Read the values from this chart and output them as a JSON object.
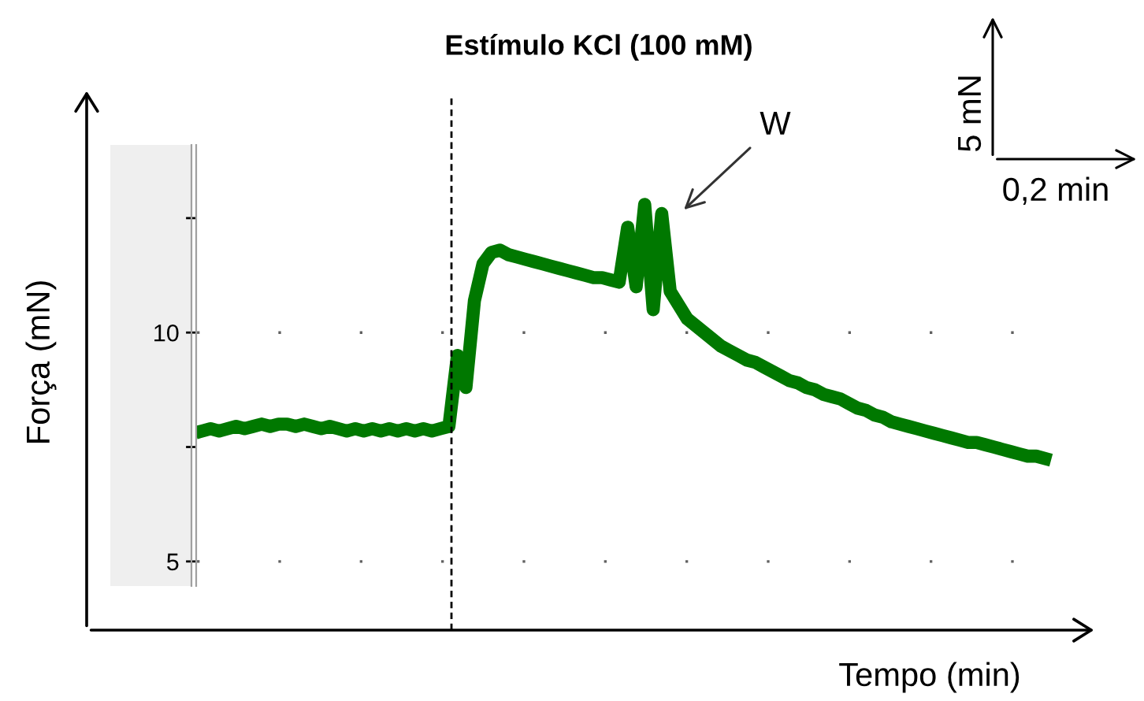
{
  "chart_data": {
    "type": "line",
    "title": "Estímulo KCl (100 mM)",
    "xlabel": "Tempo (min)",
    "ylabel": "Força (mN)",
    "categories": [
      null,
      null,
      null,
      null,
      null,
      null,
      null,
      null,
      null,
      null,
      null,
      null,
      null,
      null,
      null,
      null,
      null,
      null,
      null,
      null,
      null,
      null,
      null,
      null,
      null,
      null,
      null,
      null,
      null,
      null,
      null,
      null,
      null,
      null,
      null,
      null,
      null,
      null,
      null,
      null,
      null,
      null,
      null,
      null,
      null,
      null,
      null,
      null,
      null,
      null,
      null,
      null,
      null,
      null,
      null,
      null,
      null,
      null,
      null,
      null,
      null,
      null,
      null,
      null,
      null,
      null,
      null,
      null,
      null,
      null,
      null,
      null,
      null,
      null,
      null,
      null,
      null,
      null,
      null,
      null,
      null,
      null,
      null,
      null,
      null,
      null,
      null,
      null,
      null,
      null,
      null,
      null,
      null,
      null,
      null,
      null,
      null,
      null,
      null,
      null
    ],
    "series": [
      {
        "color": "#007800",
        "values": [
          7.85,
          7.9,
          7.85,
          7.9,
          7.95,
          7.9,
          7.95,
          8.0,
          7.95,
          8.0,
          8.0,
          7.95,
          8.0,
          7.95,
          7.9,
          7.95,
          7.9,
          7.85,
          7.9,
          7.85,
          7.9,
          7.85,
          7.9,
          7.85,
          7.9,
          7.85,
          7.9,
          7.85,
          7.9,
          7.95,
          9.5,
          8.8,
          10.7,
          11.5,
          11.75,
          11.8,
          11.7,
          11.65,
          11.6,
          11.55,
          11.5,
          11.45,
          11.4,
          11.35,
          11.3,
          11.25,
          11.2,
          11.2,
          11.15,
          11.1,
          12.3,
          11.0,
          12.8,
          10.5,
          12.6,
          10.9,
          10.6,
          10.3,
          10.15,
          10.0,
          9.85,
          9.7,
          9.6,
          9.5,
          9.4,
          9.35,
          9.25,
          9.15,
          9.05,
          8.95,
          8.9,
          8.8,
          8.75,
          8.65,
          8.6,
          8.55,
          8.45,
          8.35,
          8.3,
          8.2,
          8.15,
          8.05,
          8.0,
          7.95,
          7.9,
          7.85,
          7.8,
          7.75,
          7.7,
          7.65,
          7.6,
          7.6,
          7.55,
          7.5,
          7.45,
          7.4,
          7.35,
          7.3,
          7.3,
          7.25
        ]
      }
    ],
    "ylim": [
      3.5,
      15.2
    ],
    "yticks": [
      5,
      10,
      {
        "value": 7.5,
        "label": null
      },
      {
        "value": 12.5,
        "label": null
      }
    ],
    "ref_lines": [
      {
        "axis": "y",
        "value": 5,
        "color": "#606060",
        "line_style": "dotted"
      },
      {
        "axis": "y",
        "value": 10,
        "color": "#606060",
        "line_style": "dotted"
      }
    ],
    "annotations": [
      "W",
      "5 mN",
      "0,2 min"
    ],
    "grid": false,
    "marker": "none",
    "line_style": "solid"
  }
}
